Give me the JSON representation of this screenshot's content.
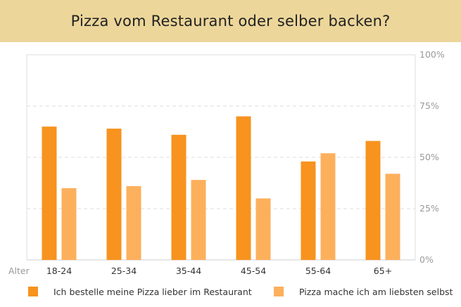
{
  "chart_data": {
    "type": "bar",
    "title": "Pizza vom Restaurant oder selber backen?",
    "xlabel": "Alter",
    "ylabel": "",
    "categories": [
      "18-24",
      "25-34",
      "35-44",
      "45-54",
      "55-64",
      "65+"
    ],
    "series": [
      {
        "name": "Ich bestelle meine Pizza lieber im Restaurant",
        "color": "#f7931e",
        "values": [
          65,
          64,
          61,
          70,
          48,
          58
        ]
      },
      {
        "name": "Pizza mache ich am liebsten selbst",
        "color": "#fcb05c",
        "values": [
          35,
          36,
          39,
          30,
          52,
          42
        ]
      }
    ],
    "ylim": [
      0,
      100
    ],
    "yticks": [
      {
        "value": 0,
        "label": "0%"
      },
      {
        "value": 25,
        "label": "25%"
      },
      {
        "value": 50,
        "label": "50%"
      },
      {
        "value": 75,
        "label": "75%"
      },
      {
        "value": 100,
        "label": "100%"
      }
    ],
    "grid": true,
    "legend_position": "bottom",
    "colors": {
      "header_bg": "#ecd69a",
      "grid": "#dddddd",
      "axis_text": "#999999"
    }
  }
}
